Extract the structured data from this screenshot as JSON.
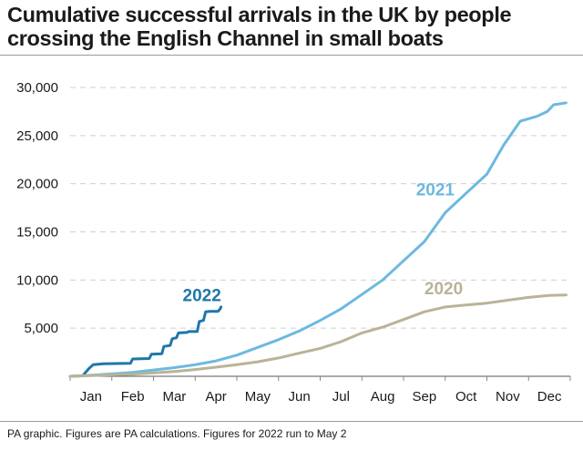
{
  "title": "Cumulative successful arrivals in the UK by people crossing the English Channel in small boats",
  "footer": "PA graphic. Figures are PA calculations. Figures for 2022 run to May 2",
  "colors": {
    "2020": "#b9b496",
    "2021": "#6cb9e0",
    "2022": "#1f77a9",
    "grid": "#cfcfcf",
    "text": "#1a1a1a",
    "tick": "#888888"
  },
  "chart_data": {
    "type": "line",
    "title": "Cumulative successful arrivals in the UK by people crossing the English Channel in small boats",
    "xlabel": "",
    "ylabel": "",
    "categories": [
      "Jan",
      "Feb",
      "Mar",
      "Apr",
      "May",
      "Jun",
      "Jul",
      "Aug",
      "Sep",
      "Oct",
      "Nov",
      "Dec"
    ],
    "ylim": [
      0,
      30000
    ],
    "yticks": [
      0,
      5000,
      10000,
      15000,
      20000,
      25000,
      30000
    ],
    "ytick_labels": [
      "",
      "5,000",
      "10,000",
      "15,000",
      "20,000",
      "25,000",
      "30,000"
    ],
    "grid": "horizontal dashed",
    "x_unit": "month (0 = 1 Jan, 12 = 31 Dec)",
    "series": [
      {
        "name": "2022",
        "points": [
          [
            0,
            0
          ],
          [
            0.3,
            50
          ],
          [
            0.45,
            800
          ],
          [
            0.55,
            1200
          ],
          [
            0.8,
            1300
          ],
          [
            1.45,
            1350
          ],
          [
            1.5,
            1800
          ],
          [
            1.9,
            1850
          ],
          [
            1.95,
            2300
          ],
          [
            2.2,
            2350
          ],
          [
            2.25,
            3100
          ],
          [
            2.4,
            3200
          ],
          [
            2.45,
            3900
          ],
          [
            2.55,
            4000
          ],
          [
            2.6,
            4500
          ],
          [
            2.8,
            4550
          ],
          [
            2.85,
            4650
          ],
          [
            3.05,
            4650
          ],
          [
            3.1,
            5700
          ],
          [
            3.2,
            5800
          ],
          [
            3.25,
            6700
          ],
          [
            3.35,
            6750
          ],
          [
            3.55,
            6750
          ],
          [
            3.6,
            7000
          ],
          [
            3.62,
            7200
          ]
        ]
      },
      {
        "name": "2021",
        "points": [
          [
            0,
            0
          ],
          [
            0.5,
            100
          ],
          [
            1.0,
            250
          ],
          [
            1.5,
            400
          ],
          [
            2.0,
            650
          ],
          [
            2.5,
            900
          ],
          [
            3.0,
            1200
          ],
          [
            3.5,
            1600
          ],
          [
            4.0,
            2200
          ],
          [
            4.5,
            3000
          ],
          [
            5.0,
            3800
          ],
          [
            5.5,
            4700
          ],
          [
            6.0,
            5800
          ],
          [
            6.5,
            7000
          ],
          [
            7.0,
            8500
          ],
          [
            7.5,
            10000
          ],
          [
            8.0,
            12000
          ],
          [
            8.5,
            14000
          ],
          [
            9.0,
            17000
          ],
          [
            9.5,
            19000
          ],
          [
            10.0,
            21000
          ],
          [
            10.4,
            24000
          ],
          [
            10.8,
            26500
          ],
          [
            11.2,
            27000
          ],
          [
            11.45,
            27500
          ],
          [
            11.6,
            28200
          ],
          [
            11.9,
            28400
          ]
        ]
      },
      {
        "name": "2020",
        "points": [
          [
            0,
            0
          ],
          [
            0.5,
            80
          ],
          [
            1.0,
            150
          ],
          [
            1.5,
            220
          ],
          [
            2.0,
            350
          ],
          [
            2.5,
            500
          ],
          [
            3.0,
            700
          ],
          [
            3.5,
            950
          ],
          [
            4.0,
            1200
          ],
          [
            4.5,
            1500
          ],
          [
            5.0,
            1900
          ],
          [
            5.5,
            2400
          ],
          [
            6.0,
            2900
          ],
          [
            6.5,
            3600
          ],
          [
            7.0,
            4500
          ],
          [
            7.5,
            5100
          ],
          [
            8.0,
            5900
          ],
          [
            8.5,
            6700
          ],
          [
            9.0,
            7200
          ],
          [
            9.5,
            7400
          ],
          [
            10.0,
            7600
          ],
          [
            10.5,
            7900
          ],
          [
            11.0,
            8200
          ],
          [
            11.5,
            8400
          ],
          [
            11.9,
            8450
          ]
        ]
      }
    ],
    "annotations": [
      {
        "text": "2022",
        "series": "2022",
        "x": 2.7,
        "y": 7800
      },
      {
        "text": "2021",
        "series": "2021",
        "x": 8.3,
        "y": 18800
      },
      {
        "text": "2020",
        "series": "2020",
        "x": 8.5,
        "y": 8500
      }
    ]
  }
}
